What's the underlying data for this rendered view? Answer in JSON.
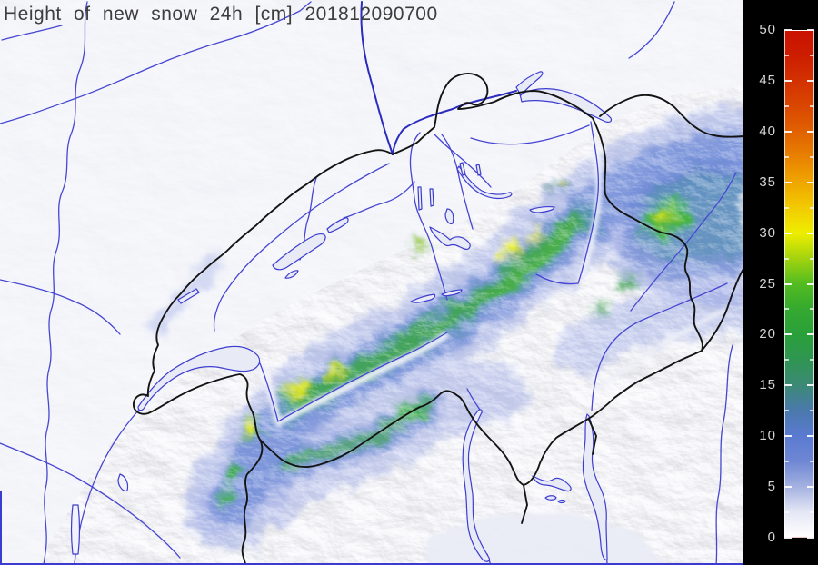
{
  "title": {
    "full": "Height of new snow 24h [cm] 201812090700",
    "label": "Height of new snow 24h [cm]",
    "timestamp": "201812090700"
  },
  "colorbar": {
    "min": 0,
    "max": 50,
    "tick_labels": [
      "50",
      "45",
      "40",
      "35",
      "30",
      "25",
      "20",
      "15",
      "10",
      "5",
      "0"
    ],
    "minor_tick_step": 2.5,
    "panel_background": "#000000",
    "label_color": "#d6d6d6",
    "tick_color": "#ffffff",
    "gradient": [
      {
        "value": 0,
        "color": "#ffffff"
      },
      {
        "value": 2.5,
        "color": "#e3e6f4"
      },
      {
        "value": 5,
        "color": "#a3b0e0"
      },
      {
        "value": 7.5,
        "color": "#6e87d4"
      },
      {
        "value": 10,
        "color": "#5a7ad0"
      },
      {
        "value": 12.5,
        "color": "#4a79ac"
      },
      {
        "value": 15,
        "color": "#3c8a76"
      },
      {
        "value": 17.5,
        "color": "#2f9552"
      },
      {
        "value": 20,
        "color": "#2aa03a"
      },
      {
        "value": 22.5,
        "color": "#35a930"
      },
      {
        "value": 25,
        "color": "#52bc20"
      },
      {
        "value": 27.5,
        "color": "#a2d30e"
      },
      {
        "value": 30,
        "color": "#eeee00"
      },
      {
        "value": 32.5,
        "color": "#f2cb00"
      },
      {
        "value": 35,
        "color": "#f0a600"
      },
      {
        "value": 37.5,
        "color": "#e88200"
      },
      {
        "value": 40,
        "color": "#e16200"
      },
      {
        "value": 42.5,
        "color": "#da4700"
      },
      {
        "value": 45,
        "color": "#d33200"
      },
      {
        "value": 47.5,
        "color": "#cd1e00"
      },
      {
        "value": 50,
        "color": "#c91200"
      }
    ]
  },
  "map": {
    "background_color": "#edeff8",
    "river_color": "#4646d2",
    "major_river_color": "#2b2bbe",
    "border_color": "#141414",
    "lake_fill": "#e8eaf6",
    "lake_outline": "#3d3dcf",
    "frame_color": "#3b3bd0",
    "title_color": "#3d3d3d"
  }
}
